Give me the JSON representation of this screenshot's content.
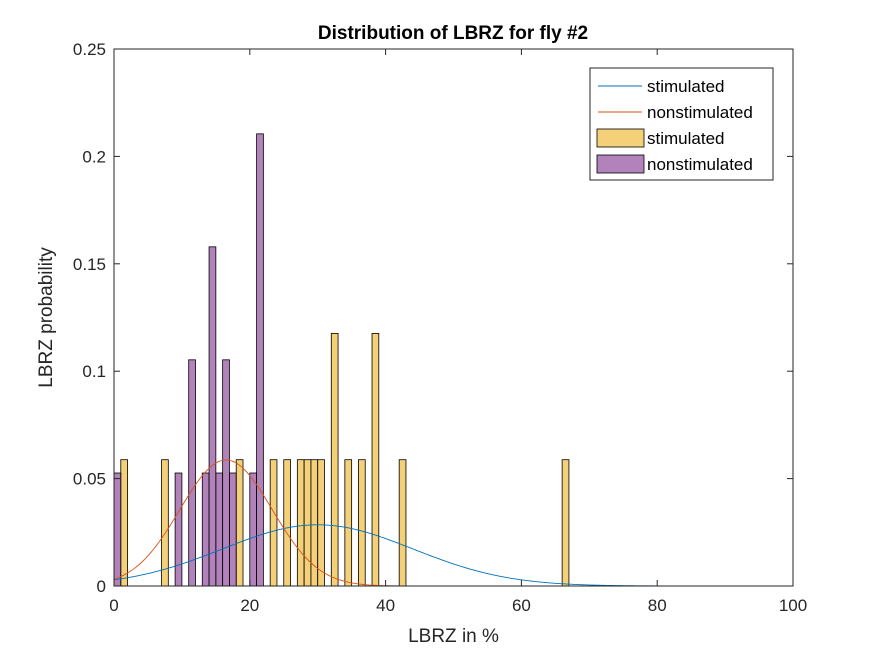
{
  "chart_data": {
    "type": "bar",
    "title": "Distribution of LBRZ for fly #2",
    "xlabel": "LBRZ in %",
    "ylabel": "LBRZ probability",
    "xlim": [
      0,
      100
    ],
    "ylim": [
      0,
      0.25
    ],
    "xticks": [
      "0",
      "20",
      "40",
      "60",
      "80",
      "100"
    ],
    "yticks": [
      "0",
      "0.05",
      "0.1",
      "0.15",
      "0.2",
      "0.25"
    ],
    "grid": false,
    "legend_position": "top-right",
    "bin_width": 1,
    "series": [
      {
        "name": "stimulated",
        "kind": "histogram",
        "color": "#EDB120",
        "edge_color": "#000000",
        "x": [
          1.5,
          7.5,
          18.5,
          23.5,
          25.5,
          27.5,
          28.5,
          29.5,
          30.5,
          32.5,
          34.5,
          36.5,
          38.5,
          42.5,
          66.5
        ],
        "values": [
          0.0588,
          0.0588,
          0.0588,
          0.0588,
          0.0588,
          0.0588,
          0.0588,
          0.0588,
          0.0588,
          0.1176,
          0.0588,
          0.0588,
          0.1176,
          0.0588,
          0.0588
        ]
      },
      {
        "name": "nonstimulated",
        "kind": "histogram",
        "color": "#7E2F8E",
        "edge_color": "#000000",
        "x": [
          0.5,
          9.5,
          11.5,
          13.5,
          14.5,
          15.5,
          16.5,
          17.5,
          20.5,
          21.5
        ],
        "values": [
          0.0526,
          0.0526,
          0.1053,
          0.0526,
          0.1579,
          0.0526,
          0.1053,
          0.0526,
          0.0526,
          0.2105
        ]
      },
      {
        "name": "stimulated",
        "kind": "normal-fit",
        "color": "#0072BD",
        "mean": 30,
        "sd": 14,
        "scale": 1
      },
      {
        "name": "nonstimulated",
        "kind": "normal-fit",
        "color": "#D95319",
        "mean": 16.5,
        "sd": 6.8,
        "scale": 1
      }
    ],
    "legend": [
      "stimulated",
      "nonstimulated",
      "stimulated",
      "nonstimulated"
    ]
  }
}
